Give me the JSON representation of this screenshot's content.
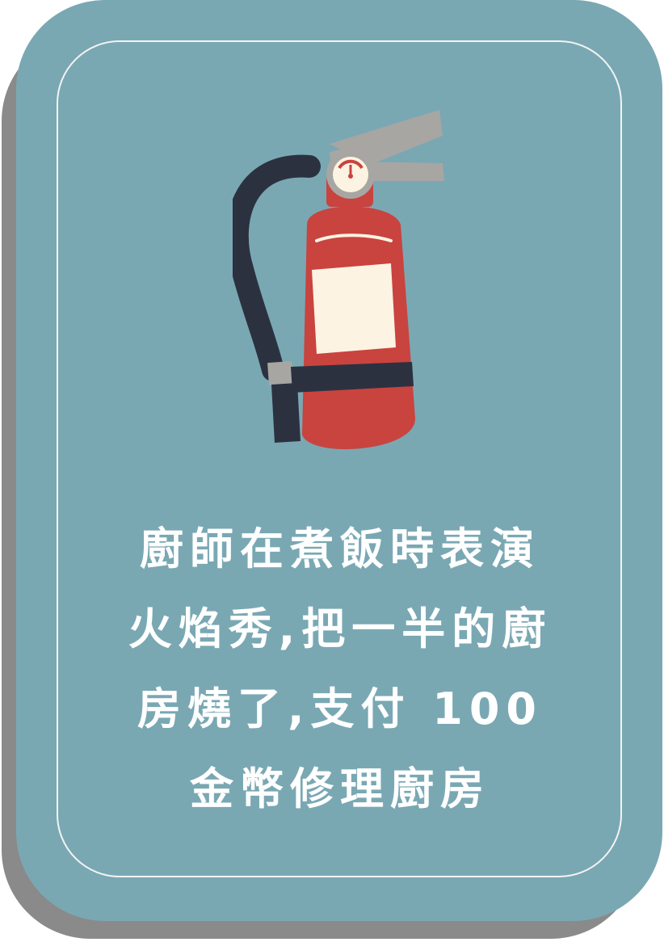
{
  "card": {
    "illustration_icon": "fire-extinguisher-icon",
    "text_lines": [
      "廚師在煮飯時表演",
      "火焰秀,把一半的廚",
      "房燒了,支付 100",
      "金幣修理廚房"
    ]
  },
  "colors": {
    "card_background": "#79a8b3",
    "shadow": "#8a8a8a",
    "border": "#f3f3f3",
    "text": "#ffffff",
    "extinguisher_body": "#c9433f",
    "hose": "#2c3140",
    "label": "#fcf3e2",
    "handle": "#a7a6a3"
  }
}
